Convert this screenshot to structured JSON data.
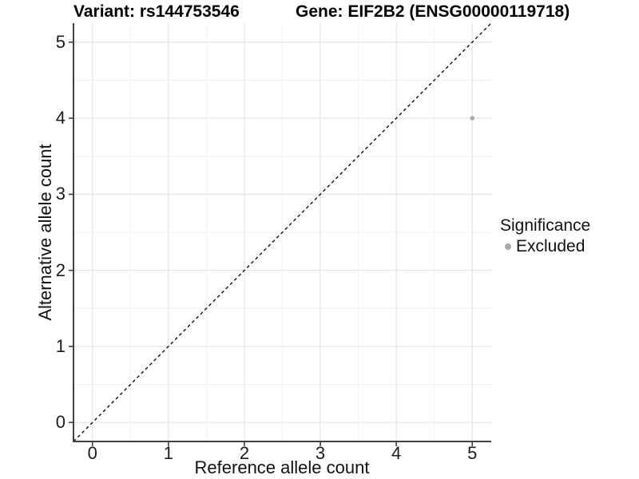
{
  "titles": {
    "variant": "Variant: rs144753546",
    "gene": "Gene: EIF2B2 (ENSG00000119718)"
  },
  "chart_data": {
    "type": "scatter",
    "title_left": "Variant: rs144753546",
    "title_right": "Gene: EIF2B2 (ENSG00000119718)",
    "xlabel": "Reference allele count",
    "ylabel": "Alternative allele count",
    "xlim": [
      -0.25,
      5.25
    ],
    "ylim": [
      -0.25,
      5.25
    ],
    "x_ticks": [
      0,
      1,
      2,
      3,
      4,
      5
    ],
    "y_ticks": [
      0,
      1,
      2,
      3,
      4,
      5
    ],
    "x_minor_ticks": [
      0.5,
      1.5,
      2.5,
      3.5,
      4.5
    ],
    "y_minor_ticks": [
      0.5,
      1.5,
      2.5,
      3.5,
      4.5
    ],
    "grid": true,
    "reference_line": {
      "kind": "identity",
      "slope": 1,
      "intercept": 0,
      "style": "dashed",
      "color": "#000000"
    },
    "series": [
      {
        "name": "Excluded",
        "color": "#aaaaaa",
        "points": [
          {
            "x": 5,
            "y": 4
          }
        ]
      }
    ],
    "legend": {
      "position": "right",
      "title": "Significance",
      "entries": [
        {
          "label": "Excluded",
          "color": "#aaaaaa"
        }
      ]
    }
  },
  "style_colors": {
    "background": "#ffffff",
    "major_grid": "#e4e4e4",
    "minor_grid": "#f1f1f1",
    "axis_line": "#404040",
    "tick_mark": "#404040",
    "point": "#aaaaaa",
    "dashed_line": "#000000"
  }
}
